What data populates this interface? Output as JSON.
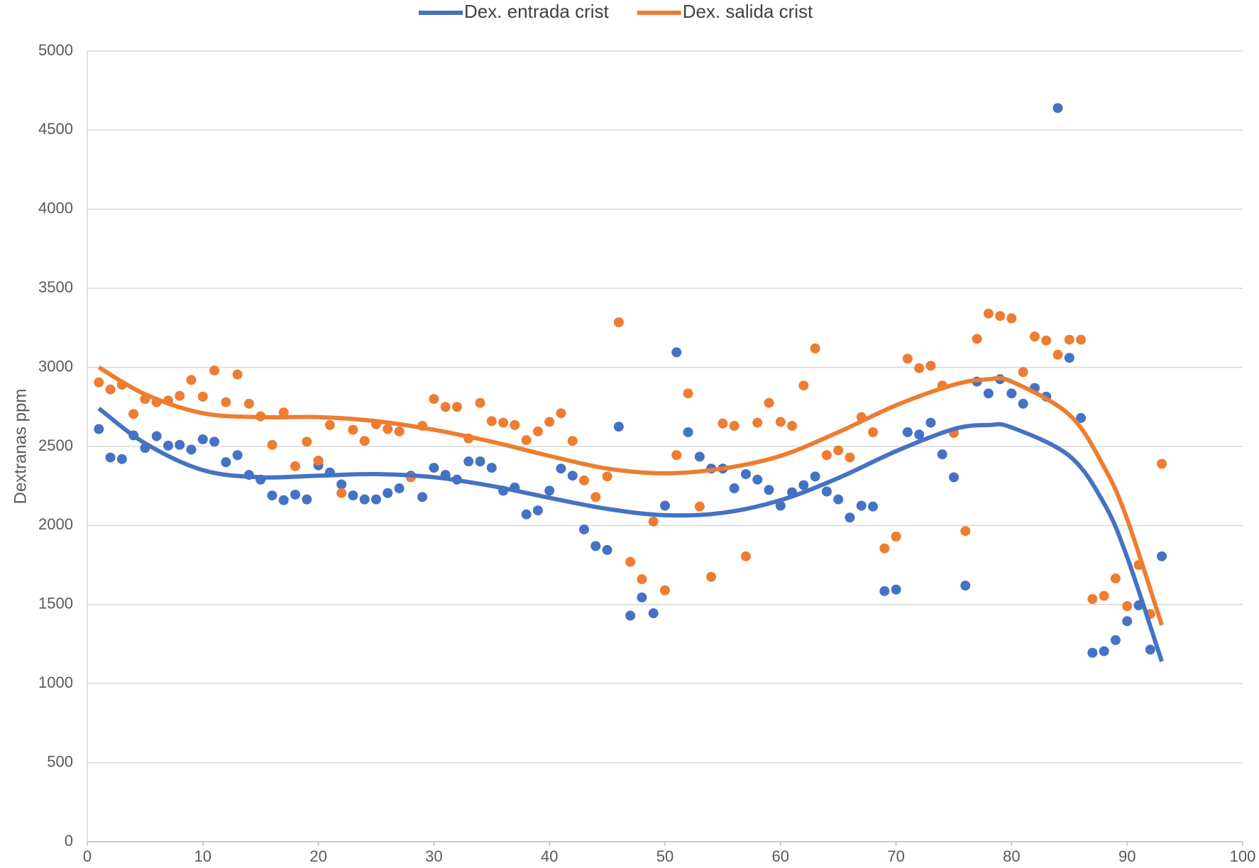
{
  "chart_data": {
    "type": "scatter",
    "y_label": "Dextranas ppm",
    "x": [
      1,
      2,
      3,
      4,
      5,
      6,
      7,
      8,
      9,
      10,
      11,
      12,
      13,
      14,
      15,
      16,
      17,
      18,
      19,
      20,
      21,
      22,
      23,
      24,
      25,
      26,
      27,
      28,
      29,
      30,
      31,
      32,
      33,
      34,
      35,
      36,
      37,
      38,
      39,
      40,
      41,
      42,
      43,
      44,
      45,
      46,
      47,
      48,
      49,
      50,
      51,
      52,
      53,
      54,
      55,
      56,
      57,
      58,
      59,
      60,
      61,
      62,
      63,
      64,
      65,
      66,
      67,
      68,
      69,
      70,
      71,
      72,
      73,
      74,
      75,
      76,
      77,
      78,
      79,
      80,
      81,
      82,
      83,
      84,
      85,
      86,
      87,
      88,
      89,
      90,
      91,
      92,
      93
    ],
    "series": [
      {
        "name": "Dex. entrada crist",
        "color": "#4472c4",
        "values": [
          2610,
          2430,
          2420,
          2570,
          2490,
          2565,
          2505,
          2510,
          2480,
          2545,
          2530,
          2400,
          2445,
          2320,
          2290,
          2190,
          2160,
          2195,
          2165,
          2380,
          2335,
          2260,
          2190,
          2165,
          2165,
          2205,
          2235,
          2315,
          2180,
          2365,
          2320,
          2290,
          2405,
          2405,
          2365,
          2220,
          2240,
          2070,
          2095,
          2220,
          2360,
          2315,
          1975,
          1870,
          1845,
          2625,
          1430,
          1545,
          1445,
          2125,
          3095,
          2590,
          2435,
          2360,
          2360,
          2235,
          2325,
          2290,
          2225,
          2125,
          2210,
          2255,
          2310,
          2215,
          2165,
          2050,
          2125,
          2120,
          1585,
          1595,
          2590,
          2575,
          2650,
          2450,
          2305,
          1620,
          2910,
          2835,
          2925,
          2835,
          2770,
          2870,
          2815,
          4640,
          3060,
          2680,
          1195,
          1205,
          1275,
          1395,
          1495,
          1215,
          1805
        ],
        "trendline": {
          "x": [
            1,
            5,
            10,
            15,
            20,
            25,
            30,
            35,
            40,
            45,
            50,
            55,
            60,
            65,
            70,
            75,
            78,
            80,
            85,
            88,
            90,
            93
          ],
          "values": [
            2740,
            2520,
            2350,
            2305,
            2315,
            2325,
            2305,
            2250,
            2175,
            2105,
            2065,
            2080,
            2160,
            2300,
            2470,
            2610,
            2635,
            2620,
            2440,
            2140,
            1800,
            1140
          ]
        }
      },
      {
        "name": "Dex. salida crist",
        "color": "#ed7d31",
        "values": [
          2905,
          2860,
          2890,
          2705,
          2800,
          2780,
          2790,
          2820,
          2920,
          2815,
          2980,
          2780,
          2955,
          2770,
          2690,
          2510,
          2715,
          2375,
          2530,
          2410,
          2635,
          2205,
          2605,
          2535,
          2640,
          2610,
          2595,
          2305,
          2630,
          2800,
          2750,
          2750,
          2550,
          2775,
          2660,
          2650,
          2635,
          2540,
          2595,
          2655,
          2710,
          2535,
          2285,
          2180,
          2310,
          3285,
          1770,
          1660,
          2025,
          1590,
          2445,
          2835,
          2120,
          1675,
          2645,
          2630,
          1805,
          2650,
          2775,
          2655,
          2630,
          2885,
          3120,
          2445,
          2475,
          2430,
          2685,
          2590,
          1855,
          1930,
          3055,
          2995,
          3010,
          2885,
          2585,
          1965,
          3180,
          3340,
          3325,
          3310,
          2970,
          3195,
          3170,
          3080,
          3175,
          3175,
          1535,
          1555,
          1665,
          1490,
          1750,
          1440,
          2390
        ],
        "trendline": {
          "x": [
            1,
            5,
            10,
            15,
            20,
            25,
            30,
            35,
            40,
            45,
            50,
            55,
            60,
            65,
            70,
            75,
            78,
            80,
            85,
            88,
            90,
            93
          ],
          "values": [
            3000,
            2830,
            2710,
            2685,
            2685,
            2660,
            2605,
            2530,
            2440,
            2360,
            2330,
            2360,
            2440,
            2590,
            2760,
            2890,
            2925,
            2910,
            2700,
            2370,
            2040,
            1370
          ]
        }
      }
    ],
    "xlim": [
      0,
      100
    ],
    "xticks": [
      0,
      10,
      20,
      30,
      40,
      50,
      60,
      70,
      80,
      90,
      100
    ],
    "ylim": [
      0,
      5000
    ],
    "yticks": [
      0,
      500,
      1000,
      1500,
      2000,
      2500,
      3000,
      3500,
      4000,
      4500,
      5000
    ],
    "grid": true,
    "legend": "top"
  }
}
